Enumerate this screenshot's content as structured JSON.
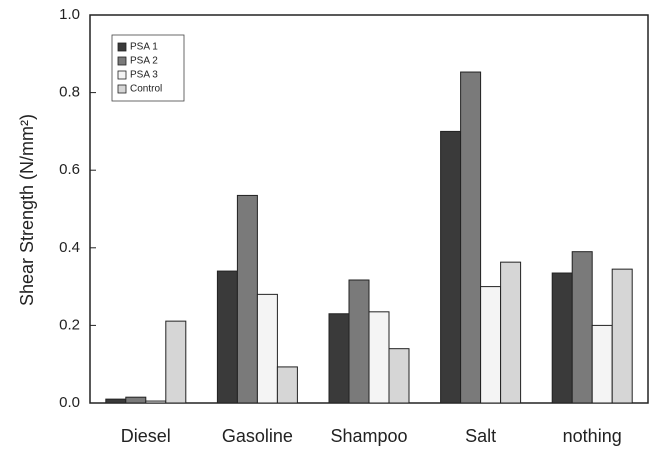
{
  "chart_data": {
    "type": "bar",
    "ylabel": "Shear Strength (N/mm²)",
    "categories": [
      "Diesel",
      "Gasoline",
      "Shampoo",
      "Salt",
      "nothing"
    ],
    "series": [
      {
        "name": "PSA 1",
        "color": "#3a3a3a",
        "values": [
          0.01,
          0.34,
          0.23,
          0.7,
          0.335
        ]
      },
      {
        "name": "PSA 2",
        "color": "#7a7a7a",
        "values": [
          0.015,
          0.535,
          0.317,
          0.853,
          0.39
        ]
      },
      {
        "name": "PSA 3",
        "color": "#f4f4f4",
        "values": [
          0.005,
          0.28,
          0.235,
          0.3,
          0.2
        ]
      },
      {
        "name": "Control",
        "color": "#d6d6d6",
        "values": [
          0.211,
          0.093,
          0.14,
          0.363,
          0.345
        ]
      }
    ],
    "ylim": [
      0,
      1
    ],
    "yticks": [
      {
        "value": 0,
        "label": "0.0"
      },
      {
        "value": 0.2,
        "label": "0.2"
      },
      {
        "value": 0.4,
        "label": "0.4"
      },
      {
        "value": 0.6,
        "label": "0.6"
      },
      {
        "value": 0.8,
        "label": "0.8"
      },
      {
        "value": 1,
        "label": "1.0"
      }
    ],
    "legend": "upper left",
    "grid": false
  }
}
